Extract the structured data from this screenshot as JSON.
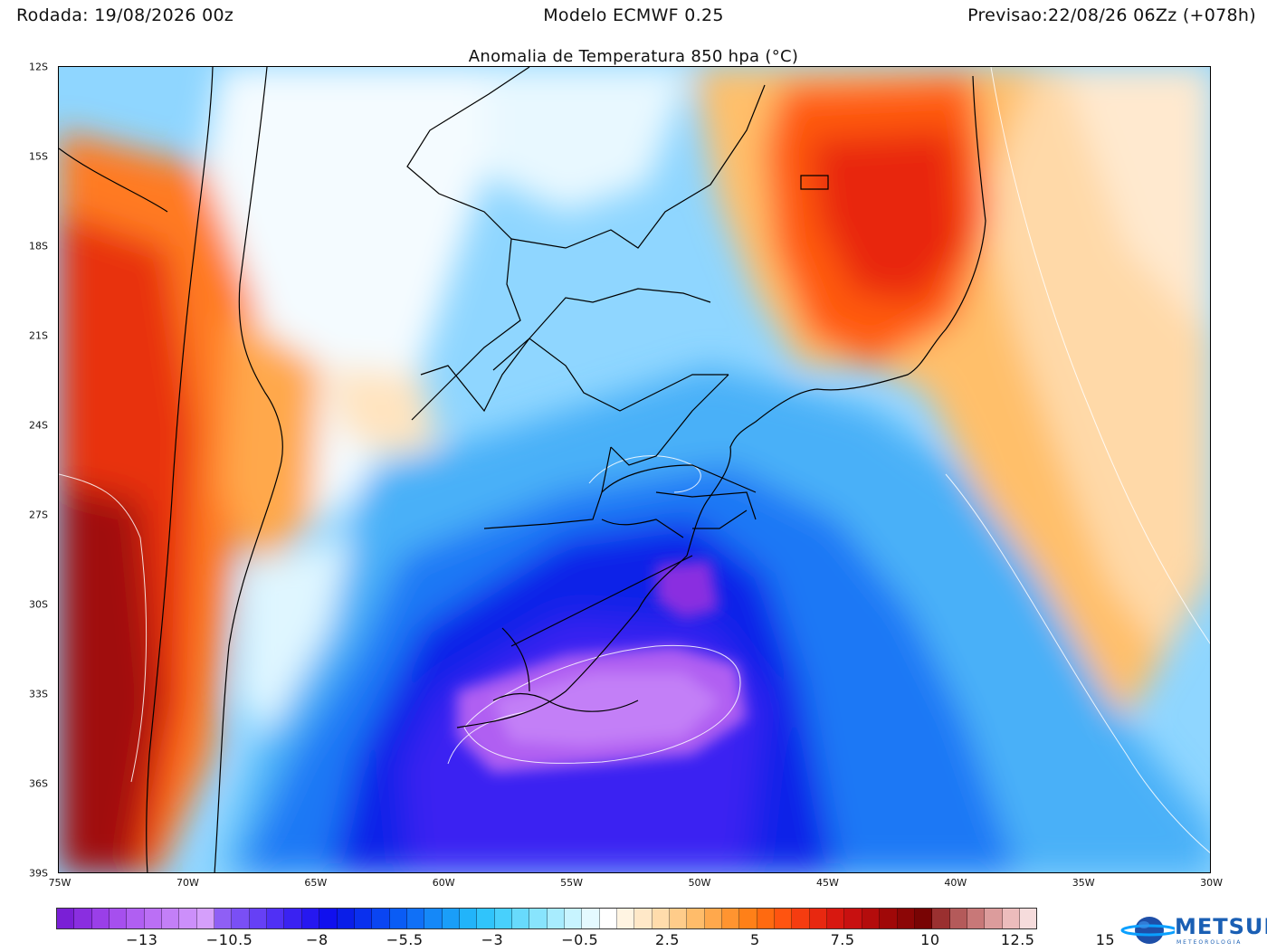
{
  "header": {
    "run": "Rodada: 19/08/2026 00z",
    "model": "Modelo ECMWF 0.25",
    "forecast": "Previsao:22/08/26 06Zz (+078h)"
  },
  "map": {
    "title": "Anomalia de Temperatura 850 hpa (°C)",
    "lat_labels": [
      "12S",
      "15S",
      "18S",
      "21S",
      "24S",
      "27S",
      "30S",
      "33S",
      "36S",
      "39S"
    ],
    "lon_labels": [
      "75W",
      "70W",
      "65W",
      "60W",
      "55W",
      "50W",
      "45W",
      "40W",
      "35W",
      "30W"
    ]
  },
  "colorbar": {
    "labels": [
      "−13",
      "−10.5",
      "−8",
      "−5.5",
      "−3",
      "−0.5",
      "2.5",
      "5",
      "7.5",
      "10",
      "12.5",
      "15"
    ],
    "colors": [
      "#7a1fd6",
      "#8a2ee0",
      "#9a3fe8",
      "#a64fee",
      "#b05ff2",
      "#bb6ff5",
      "#c37ff7",
      "#cc8ffa",
      "#d59ffb",
      "#8f5ff5",
      "#7a4ff5",
      "#6640f5",
      "#5030f5",
      "#3a22f2",
      "#2618f0",
      "#1010ee",
      "#0a1ee8",
      "#0a30ee",
      "#0a45f2",
      "#0a5cf5",
      "#1070f7",
      "#1588f8",
      "#1a9ef9",
      "#22b4fa",
      "#30c4fb",
      "#48d0fc",
      "#68dafc",
      "#88e4fd",
      "#a8ecfe",
      "#c8f4ff",
      "#e4faff",
      "#ffffff",
      "#fff4e2",
      "#ffe8c8",
      "#ffdcac",
      "#ffcc8a",
      "#ffbc6a",
      "#ffa84c",
      "#ff9430",
      "#ff8018",
      "#ff6a10",
      "#ff5410",
      "#f53c10",
      "#e82810",
      "#d81810",
      "#c81010",
      "#b40c0c",
      "#a00808",
      "#8c0606",
      "#780404",
      "#9a3030",
      "#b45a5a",
      "#c87878",
      "#dc9c9c",
      "#ecbcbc",
      "#f6dcdc"
    ]
  },
  "logo": {
    "name": "METSUL",
    "sub": "METEOROLOGIA"
  }
}
